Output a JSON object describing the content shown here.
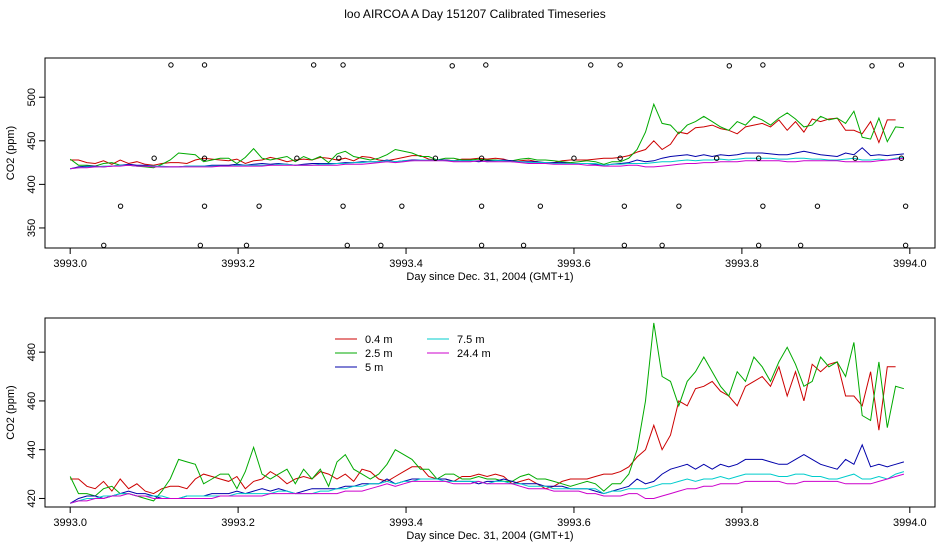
{
  "page_title": "loo AIRCOA A  Day 151207  Calibrated Timeseries",
  "chart_data": [
    {
      "type": "scatter+line",
      "xlabel": "Day since Dec. 31, 2004 (GMT+1)",
      "ylabel": "CO2 (ppm)",
      "xlim": [
        3992.97,
        3994.03
      ],
      "ylim": [
        327,
        545
      ],
      "xticks": [
        "3993.0",
        "3993.2",
        "3993.4",
        "3993.6",
        "3993.8",
        "3994.0"
      ],
      "xtick_values": [
        3993.0,
        3993.2,
        3993.4,
        3993.6,
        3993.8,
        3994.0
      ],
      "yticks": [
        "350",
        "400",
        "450",
        "500"
      ],
      "ytick_values": [
        350,
        400,
        450,
        500
      ],
      "grid": false,
      "points": {
        "x": [
          3993.04,
          3993.06,
          3993.1,
          3993.12,
          3993.155,
          3993.16,
          3993.16,
          3993.16,
          3993.21,
          3993.225,
          3993.27,
          3993.29,
          3993.32,
          3993.325,
          3993.325,
          3993.33,
          3993.37,
          3993.395,
          3993.435,
          3993.455,
          3993.49,
          3993.49,
          3993.49,
          3993.495,
          3993.54,
          3993.56,
          3993.6,
          3993.62,
          3993.655,
          3993.655,
          3993.66,
          3993.66,
          3993.705,
          3993.725,
          3993.77,
          3993.785,
          3993.82,
          3993.82,
          3993.825,
          3993.825,
          3993.87,
          3993.89,
          3993.935,
          3993.955,
          3993.99,
          3993.99,
          3993.995,
          3993.995
        ],
        "y": [
          330,
          375,
          430,
          537,
          330,
          375,
          430,
          537,
          330,
          375,
          430,
          537,
          430,
          537,
          375,
          330,
          330,
          375,
          430,
          536,
          330,
          375,
          430,
          537,
          330,
          375,
          430,
          537,
          430,
          537,
          375,
          330,
          330,
          375,
          430,
          536,
          330,
          430,
          375,
          537,
          330,
          375,
          430,
          536,
          537,
          430,
          375,
          330
        ]
      },
      "series": [
        {
          "name": "0.4 m",
          "color": "#cc0000",
          "x_start": 3993.0,
          "x_step": 0.00993,
          "values": [
            428,
            428,
            425,
            424,
            427,
            423,
            428,
            424,
            426,
            423,
            422,
            424,
            425,
            425,
            424,
            428,
            430,
            429,
            428,
            427,
            429,
            424,
            427,
            428,
            431,
            429,
            426,
            428,
            429,
            428,
            431,
            430,
            428,
            430,
            427,
            432,
            431,
            428,
            427,
            429,
            431,
            433,
            433,
            429,
            428,
            428,
            427,
            429,
            429,
            430,
            429,
            430,
            429,
            426,
            427,
            428,
            426,
            424,
            425,
            427,
            428,
            428,
            428,
            429,
            430,
            430,
            431,
            433,
            437,
            440,
            450,
            440,
            446,
            460,
            458,
            465,
            466,
            468,
            464,
            462,
            458,
            466,
            468,
            470,
            466,
            474,
            462,
            472,
            460,
            475,
            472,
            475,
            476,
            462,
            462,
            458,
            472,
            448,
            474,
            474
          ]
        },
        {
          "name": "2.5 m",
          "color": "#00aa00",
          "x_start": 3993.0,
          "x_step": 0.00993,
          "values": [
            429,
            422,
            422,
            421,
            424,
            425,
            422,
            422,
            421,
            420,
            419,
            423,
            428,
            436,
            435,
            434,
            426,
            428,
            430,
            430,
            424,
            431,
            441,
            430,
            428,
            430,
            432,
            426,
            432,
            428,
            432,
            425,
            435,
            438,
            432,
            430,
            428,
            430,
            434,
            440,
            438,
            436,
            432,
            432,
            428,
            430,
            430,
            428,
            428,
            429,
            428,
            428,
            427,
            427,
            429,
            430,
            428,
            428,
            427,
            426,
            425,
            426,
            427,
            426,
            423,
            426,
            426,
            430,
            440,
            460,
            492,
            470,
            468,
            458,
            468,
            472,
            478,
            472,
            466,
            462,
            472,
            468,
            478,
            474,
            468,
            476,
            482,
            475,
            466,
            468,
            478,
            474,
            476,
            470,
            484,
            454,
            452,
            476,
            449,
            466,
            465
          ]
        },
        {
          "name": "5 m",
          "color": "#0000aa",
          "x_start": 3993.0,
          "x_step": 0.00993,
          "values": [
            418,
            420,
            421,
            421,
            420,
            421,
            422,
            423,
            422,
            422,
            421,
            420,
            420,
            420,
            421,
            421,
            421,
            422,
            422,
            422,
            423,
            422,
            423,
            424,
            423,
            424,
            423,
            422,
            423,
            424,
            424,
            424,
            424,
            425,
            425,
            426,
            426,
            426,
            428,
            426,
            427,
            428,
            428,
            428,
            428,
            428,
            427,
            427,
            427,
            426,
            427,
            427,
            428,
            427,
            426,
            426,
            426,
            425,
            425,
            425,
            424,
            424,
            424,
            423,
            422,
            423,
            424,
            425,
            428,
            426,
            427,
            430,
            432,
            433,
            434,
            432,
            434,
            432,
            434,
            433,
            434,
            436,
            436,
            436,
            435,
            434,
            434,
            436,
            438,
            436,
            434,
            433,
            432,
            436,
            434,
            442,
            433,
            434,
            433,
            434,
            435
          ]
        },
        {
          "name": "7.5 m",
          "color": "#00cccc",
          "x_start": 3993.0,
          "x_step": 0.00993,
          "values": [
            418,
            419,
            420,
            420,
            421,
            421,
            422,
            422,
            421,
            421,
            421,
            421,
            420,
            420,
            421,
            421,
            421,
            421,
            421,
            421,
            422,
            422,
            422,
            422,
            422,
            423,
            423,
            422,
            422,
            422,
            423,
            423,
            424,
            424,
            425,
            425,
            426,
            426,
            427,
            426,
            427,
            427,
            428,
            428,
            428,
            427,
            427,
            427,
            427,
            427,
            426,
            427,
            427,
            426,
            426,
            425,
            425,
            425,
            424,
            424,
            424,
            424,
            424,
            424,
            422,
            423,
            423,
            424,
            424,
            424,
            425,
            426,
            426,
            427,
            428,
            427,
            428,
            428,
            429,
            428,
            429,
            430,
            430,
            430,
            430,
            429,
            429,
            430,
            430,
            429,
            429,
            428,
            428,
            429,
            430,
            428,
            428,
            429,
            428,
            430,
            431
          ]
        },
        {
          "name": "24.4 m",
          "color": "#cc00cc",
          "x_start": 3993.0,
          "x_step": 0.00993,
          "values": [
            418,
            419,
            419,
            420,
            420,
            421,
            421,
            422,
            421,
            421,
            420,
            420,
            420,
            420,
            420,
            420,
            420,
            420,
            421,
            421,
            421,
            421,
            421,
            421,
            422,
            422,
            422,
            422,
            422,
            422,
            422,
            422,
            422,
            423,
            423,
            423,
            424,
            425,
            426,
            425,
            426,
            427,
            427,
            427,
            427,
            427,
            426,
            426,
            426,
            427,
            426,
            426,
            426,
            426,
            425,
            424,
            424,
            424,
            423,
            423,
            423,
            423,
            422,
            422,
            421,
            421,
            421,
            422,
            422,
            420,
            420,
            421,
            422,
            423,
            424,
            424,
            425,
            425,
            426,
            426,
            426,
            427,
            427,
            427,
            427,
            427,
            426,
            426,
            427,
            427,
            427,
            427,
            427,
            426,
            426,
            426,
            426,
            427,
            428,
            429,
            430
          ]
        }
      ]
    },
    {
      "type": "line",
      "xlabel": "Day since Dec. 31, 2004 (GMT+1)",
      "ylabel": "CO2 (ppm)",
      "xlim": [
        3992.97,
        3994.03
      ],
      "ylim": [
        416.5,
        494
      ],
      "xticks": [
        "3993.0",
        "3993.2",
        "3993.4",
        "3993.6",
        "3993.8",
        "3994.0"
      ],
      "xtick_values": [
        3993.0,
        3993.2,
        3993.4,
        3993.6,
        3993.8,
        3994.0
      ],
      "yticks": [
        "420",
        "440",
        "460",
        "480"
      ],
      "ytick_values": [
        420,
        440,
        460,
        480
      ],
      "grid": false,
      "legend": {
        "placement": "top-left",
        "entries": [
          {
            "label": "0.4 m",
            "color": "#cc0000"
          },
          {
            "label": "7.5 m",
            "color": "#00cccc"
          },
          {
            "label": "2.5 m",
            "color": "#00aa00"
          },
          {
            "label": "24.4 m",
            "color": "#cc00cc"
          },
          {
            "label": "5 m",
            "color": "#0000aa"
          }
        ]
      },
      "series_ref": "same as plot 1"
    }
  ]
}
